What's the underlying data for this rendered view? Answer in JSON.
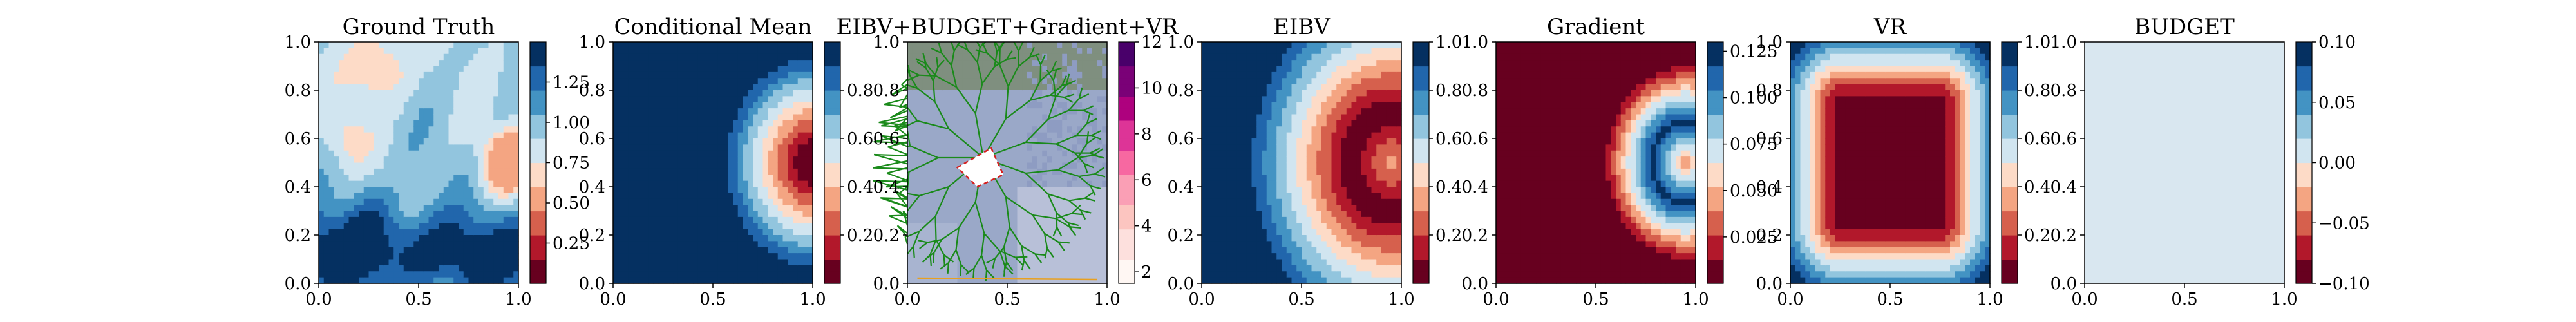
{
  "chart_data": [
    {
      "type": "heatmap",
      "title": "Ground Truth",
      "xlim": [
        0,
        1
      ],
      "ylim": [
        0,
        1
      ],
      "xticks": [
        "0.0",
        "0.5",
        "1.0"
      ],
      "yticks": [
        "0.0",
        "0.2",
        "0.4",
        "0.6",
        "0.8",
        "1.0"
      ],
      "colormap": "RdBu",
      "colorbar": {
        "range": [
          0.0,
          1.5
        ],
        "ticks": [
          "0.25",
          "0.50",
          "0.75",
          "1.00",
          "1.25"
        ]
      },
      "field": "random field: low values (red) near x=0.95, y=0.5 and around x=0.3, y=0.9; high values (blue) along the bottom band y<0.35"
    },
    {
      "type": "heatmap",
      "title": "Conditional Mean",
      "xlim": [
        0,
        1
      ],
      "ylim": [
        0,
        1
      ],
      "xticks": [
        "0.0",
        "0.5",
        "1.0"
      ],
      "yticks": [
        "0.0",
        "0.2",
        "0.4",
        "0.6",
        "0.8",
        "1.0"
      ],
      "colormap": "RdBu",
      "colorbar": {
        "range": [
          0.0,
          1.0
        ],
        "ticks": [
          "0.2",
          "0.4",
          "0.6",
          "0.8"
        ]
      },
      "field": "radial low centred at x=1.0, y=0.5, rising to high (blue) beyond radius 0.45"
    },
    {
      "type": "heatmap",
      "title": "EIBV+BUDGET+Gradient+VR",
      "xlim": [
        0,
        1
      ],
      "ylim": [
        0,
        1
      ],
      "xticks": [
        "0.0",
        "0.5",
        "1.0"
      ],
      "yticks": [
        "0.0",
        "0.2",
        "0.4",
        "0.6",
        "0.8",
        "1.0"
      ],
      "colormap": "RdPu",
      "colorbar": {
        "range": [
          1.5,
          12
        ],
        "ticks": [
          "2",
          "4",
          "6",
          "8",
          "10",
          "12"
        ]
      },
      "overlay": "green branching candidate-path tree grown from the cluster near x=0.4, y=0.5; short red dashed path polygon near x=0.25-0.45, y=0.4-0.55"
    },
    {
      "type": "heatmap",
      "title": "EIBV",
      "xlim": [
        0,
        1
      ],
      "ylim": [
        0,
        1
      ],
      "xticks": [
        "0.0",
        "0.5",
        "1.0"
      ],
      "yticks": [
        "0.0",
        "0.2",
        "0.4",
        "0.6",
        "0.8",
        "1.0"
      ],
      "colormap": "RdBu",
      "colorbar": {
        "range": [
          0.0,
          1.0
        ],
        "ticks": [
          "0.2",
          "0.4",
          "0.6",
          "0.8",
          "1.0"
        ]
      },
      "field": "crescent-shaped low ring at radius ~0.2 around x=0.95, y=0.5"
    },
    {
      "type": "heatmap",
      "title": "Gradient",
      "xlim": [
        0,
        1
      ],
      "ylim": [
        0,
        1
      ],
      "xticks": [
        "0.0",
        "0.5",
        "1.0"
      ],
      "yticks": [
        "0.0",
        "0.2",
        "0.4",
        "0.6",
        "0.8",
        "1.0"
      ],
      "colormap": "RdBu",
      "colorbar": {
        "range": [
          0.0,
          0.13
        ],
        "ticks": [
          "0.025",
          "0.050",
          "0.075",
          "0.100",
          "0.125"
        ]
      },
      "field": "high (blue) ring at radius ~0.2 around x=0.95, y=0.5; low elsewhere"
    },
    {
      "type": "heatmap",
      "title": "VR",
      "xlim": [
        0,
        1
      ],
      "ylim": [
        0,
        1
      ],
      "xticks": [
        "0.0",
        "0.5",
        "1.0"
      ],
      "yticks": [
        "0.0",
        "0.2",
        "0.4",
        "0.6",
        "0.8",
        "1.0"
      ],
      "colormap": "RdBu",
      "colorbar": {
        "range": [
          0.0,
          1.0
        ],
        "ticks": [
          "0.2",
          "0.4",
          "0.6",
          "0.8",
          "1.0"
        ]
      },
      "field": "rounded-rectangle low interior, rising to high (blue) at the domain edges"
    },
    {
      "type": "heatmap",
      "title": "BUDGET",
      "xlim": [
        0,
        1
      ],
      "ylim": [
        0,
        1
      ],
      "xticks": [
        "0.0",
        "0.5",
        "1.0"
      ],
      "yticks": [
        "0.0",
        "0.2",
        "0.4",
        "0.6",
        "0.8",
        "1.0"
      ],
      "colormap": "RdBu",
      "colorbar": {
        "range": [
          -0.1,
          0.1
        ],
        "ticks": [
          "−0.10",
          "−0.05",
          "0.00",
          "0.05",
          "0.10"
        ]
      },
      "field": "constant 0.00 everywhere"
    }
  ]
}
